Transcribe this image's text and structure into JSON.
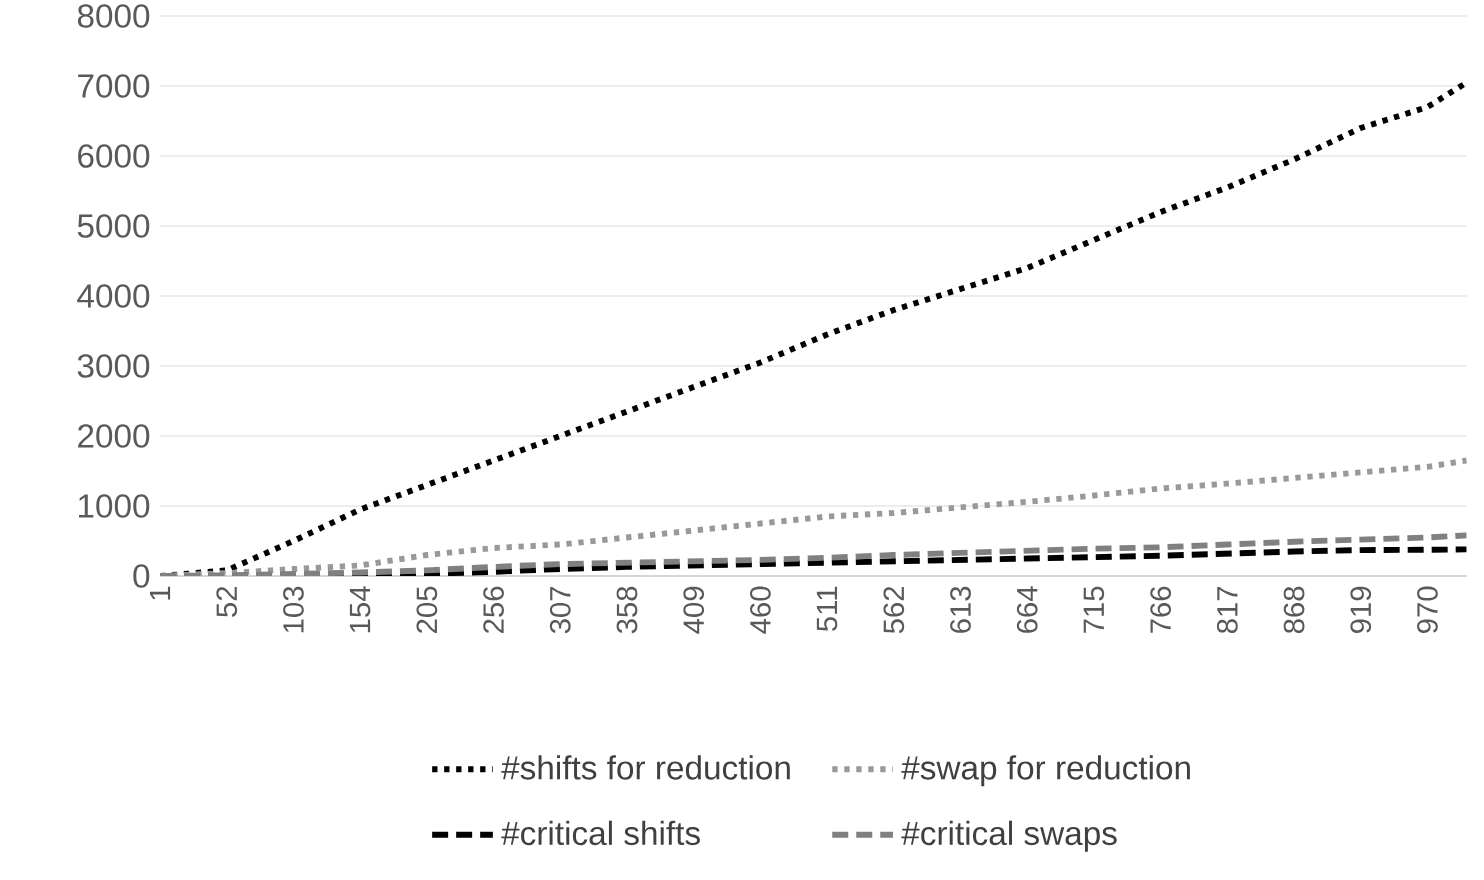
{
  "chart_data": {
    "type": "line",
    "x": [
      1,
      52,
      103,
      154,
      205,
      256,
      307,
      358,
      409,
      460,
      511,
      562,
      613,
      664,
      715,
      766,
      817,
      868,
      919,
      970,
      1000
    ],
    "series": [
      {
        "name": "#shifts for reduction",
        "color": "#000000",
        "line_style": "dotted",
        "values": [
          0,
          80,
          500,
          950,
          1300,
          1650,
          2000,
          2350,
          2700,
          3050,
          3450,
          3800,
          4100,
          4400,
          4800,
          5200,
          5550,
          5950,
          6400,
          6700,
          7050
        ]
      },
      {
        "name": "#swap for reduction",
        "color": "#999999",
        "line_style": "dotted",
        "values": [
          0,
          40,
          100,
          150,
          300,
          400,
          450,
          550,
          650,
          750,
          850,
          900,
          980,
          1060,
          1150,
          1250,
          1320,
          1400,
          1480,
          1560,
          1650
        ]
      },
      {
        "name": "#critical shifts",
        "color": "#000000",
        "line_style": "dashed",
        "values": [
          0,
          0,
          10,
          20,
          30,
          60,
          100,
          130,
          150,
          170,
          190,
          210,
          230,
          250,
          270,
          290,
          320,
          350,
          370,
          375,
          380
        ]
      },
      {
        "name": "#critical swaps",
        "color": "#808080",
        "line_style": "dashed",
        "values": [
          0,
          10,
          30,
          50,
          80,
          130,
          170,
          190,
          210,
          230,
          260,
          300,
          330,
          360,
          390,
          410,
          450,
          490,
          520,
          550,
          580
        ]
      }
    ],
    "xlim": [
      1,
      1000
    ],
    "xticks": [
      1,
      52,
      103,
      154,
      205,
      256,
      307,
      358,
      409,
      460,
      511,
      562,
      613,
      664,
      715,
      766,
      817,
      868,
      919,
      970
    ],
    "ylim": [
      0,
      8000
    ],
    "yticks": [
      0,
      1000,
      2000,
      3000,
      4000,
      5000,
      6000,
      7000,
      8000
    ],
    "grid": "y",
    "legend": "bottom",
    "marker": "none"
  }
}
